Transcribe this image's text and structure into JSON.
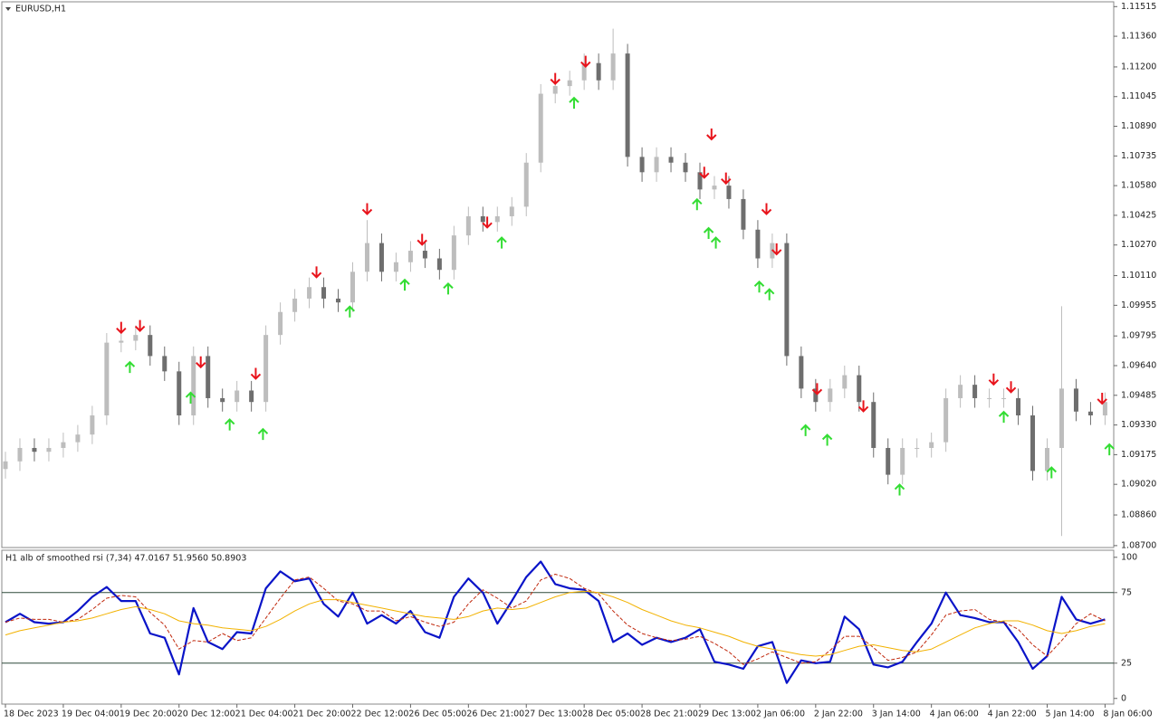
{
  "chart_data": [
    {
      "type": "candlestick",
      "title": "EURUSD,H1",
      "x_labels": [
        "18 Dec 2023",
        "19 Dec 04:00",
        "19 Dec 20:00",
        "20 Dec 12:00",
        "21 Dec 04:00",
        "21 Dec 20:00",
        "22 Dec 12:00",
        "26 Dec 05:00",
        "26 Dec 21:00",
        "27 Dec 13:00",
        "28 Dec 05:00",
        "28 Dec 21:00",
        "29 Dec 13:00",
        "2 Jan 06:00",
        "2 Jan 22:00",
        "3 Jan 14:00",
        "4 Jan 06:00",
        "4 Jan 22:00",
        "5 Jan 14:00",
        "8 Jan 06:00"
      ],
      "xlim": [
        -0.25,
        76.6
      ],
      "ylim": [
        1.0869,
        1.1154
      ],
      "yticks": [
        1.11515,
        {
          "value": 1.1136,
          "label": "1.11360"
        },
        {
          "value": 1.112,
          "label": "1.11200"
        },
        1.11045,
        {
          "value": 1.1089,
          "label": "1.10890"
        },
        1.10735,
        {
          "value": 1.1058,
          "label": "1.10580"
        },
        1.10425,
        {
          "value": 1.1027,
          "label": "1.10270"
        },
        {
          "value": 1.1011,
          "label": "1.10110"
        },
        1.09955,
        1.09795,
        {
          "value": 1.0964,
          "label": "1.09640"
        },
        1.09485,
        {
          "value": 1.0933,
          "label": "1.09330"
        },
        1.09175,
        {
          "value": 1.0902,
          "label": "1.09020"
        },
        {
          "value": 1.0886,
          "label": "1.08860"
        },
        {
          "value": 1.087,
          "label": "1.08700"
        }
      ],
      "up_color": "#bdbdbd",
      "down_color": "#6e6e6e",
      "candles": {
        "open": [
          1.091,
          1.0914,
          1.0921,
          1.0919,
          1.0921,
          1.0924,
          1.0928,
          1.0938,
          1.0976,
          1.0977,
          1.098,
          1.0969,
          1.0961,
          1.0938,
          1.0969,
          1.0947,
          1.0945,
          1.0951,
          1.0945,
          1.098,
          1.0992,
          1.0999,
          1.1005,
          1.0999,
          1.0997,
          1.1013,
          1.1028,
          1.1013,
          1.1018,
          1.1024,
          1.102,
          1.1014,
          1.1032,
          1.1042,
          1.1039,
          1.1042,
          1.1047,
          1.107,
          1.1106,
          1.111,
          1.1113,
          1.1122,
          1.1113,
          1.1127,
          1.1073,
          1.1065,
          1.1073,
          1.107,
          1.1065,
          1.1056,
          1.1058,
          1.1051,
          1.1035,
          1.102,
          1.1028,
          1.0969,
          1.0952,
          1.0945,
          1.0952,
          1.0959,
          1.0945,
          1.0921,
          1.0907,
          1.0921,
          1.0921,
          1.0924,
          1.0947,
          1.0954,
          1.0947,
          1.0947,
          1.0947,
          1.0938,
          1.0909,
          1.0921,
          1.0952,
          1.094,
          1.0938
        ],
        "high": [
          1.0919,
          1.0926,
          1.0926,
          1.0926,
          1.0929,
          1.0933,
          1.0943,
          1.0981,
          1.0982,
          1.0985,
          1.0985,
          1.0974,
          1.0966,
          1.0974,
          1.0974,
          1.0952,
          1.0956,
          1.0956,
          1.0985,
          1.0997,
          1.1004,
          1.101,
          1.101,
          1.1004,
          1.1018,
          1.104,
          1.1033,
          1.1023,
          1.1029,
          1.1029,
          1.1025,
          1.1037,
          1.1047,
          1.1047,
          1.1047,
          1.1052,
          1.1075,
          1.1111,
          1.1115,
          1.1118,
          1.1127,
          1.1127,
          1.114,
          1.1132,
          1.1078,
          1.1078,
          1.1078,
          1.1075,
          1.107,
          1.1063,
          1.1063,
          1.1056,
          1.104,
          1.1033,
          1.1033,
          1.0974,
          1.0957,
          1.0957,
          1.0964,
          1.0964,
          1.095,
          1.0926,
          1.0926,
          1.0926,
          1.0929,
          1.0952,
          1.0959,
          1.0959,
          1.0952,
          1.0952,
          1.0952,
          1.0943,
          1.0926,
          1.0995,
          1.0957,
          1.0945,
          1.095
        ],
        "low": [
          1.0905,
          1.0909,
          1.0914,
          1.0914,
          1.0916,
          1.0919,
          1.0923,
          1.0933,
          1.0971,
          1.0972,
          1.0964,
          1.0956,
          1.0933,
          1.0933,
          1.0942,
          1.094,
          1.094,
          1.094,
          1.094,
          1.0975,
          1.0987,
          1.0994,
          1.0994,
          1.0992,
          1.0992,
          1.1008,
          1.1008,
          1.1008,
          1.1013,
          1.1015,
          1.1009,
          1.1009,
          1.1027,
          1.1034,
          1.1034,
          1.1037,
          1.1042,
          1.1065,
          1.1101,
          1.1105,
          1.1108,
          1.1108,
          1.1108,
          1.1068,
          1.106,
          1.106,
          1.1065,
          1.106,
          1.1051,
          1.1051,
          1.1046,
          1.103,
          1.1015,
          1.1015,
          1.0964,
          1.0947,
          1.094,
          1.094,
          1.0947,
          1.094,
          1.0916,
          1.0902,
          1.0902,
          1.0916,
          1.0916,
          1.0919,
          1.0942,
          1.0942,
          1.0942,
          1.0942,
          1.0933,
          1.0904,
          1.0904,
          1.0875,
          1.0935,
          1.0933,
          1.0933
        ],
        "close": [
          1.0914,
          1.0921,
          1.0919,
          1.0921,
          1.0924,
          1.0928,
          1.0938,
          1.0976,
          1.0977,
          1.098,
          1.0969,
          1.0961,
          1.0938,
          1.0969,
          1.0947,
          1.0945,
          1.0951,
          1.0945,
          1.098,
          1.0992,
          1.0999,
          1.1005,
          1.0999,
          1.0997,
          1.1013,
          1.1028,
          1.1013,
          1.1018,
          1.1024,
          1.102,
          1.1014,
          1.1032,
          1.1042,
          1.1039,
          1.1042,
          1.1047,
          1.107,
          1.1106,
          1.111,
          1.1113,
          1.1122,
          1.1113,
          1.1127,
          1.1073,
          1.1065,
          1.1073,
          1.107,
          1.1065,
          1.1056,
          1.1058,
          1.1051,
          1.1035,
          1.102,
          1.1028,
          1.0969,
          1.0952,
          1.0945,
          1.0952,
          1.0959,
          1.0945,
          1.0921,
          1.0907,
          1.0921,
          1.0921,
          1.0924,
          1.0947,
          1.0954,
          1.0947,
          1.0947,
          1.0947,
          1.0938,
          1.0909,
          1.0921,
          1.0952,
          1.094,
          1.0938,
          1.0945
        ]
      },
      "signals": [
        {
          "marker": "down",
          "color": "#e8141c",
          "x": [
            8.0,
            9.3,
            13.5,
            17.3,
            21.5,
            25.0,
            28.8,
            33.3,
            38.0,
            40.1,
            48.8,
            48.3,
            49.8,
            52.6,
            53.3,
            56.1,
            59.3,
            68.3,
            69.5,
            75.8
          ],
          "values": [
            1.0984,
            1.0985,
            1.0966,
            1.096,
            1.1013,
            1.1046,
            1.103,
            1.1039,
            1.1114,
            1.1123,
            1.1085,
            1.1065,
            1.1062,
            1.1046,
            1.1025,
            1.0952,
            1.0943,
            1.0957,
            1.0953,
            1.0947
          ]
        },
        {
          "marker": "up",
          "color": "#33dd33",
          "x": [
            8.6,
            12.8,
            15.5,
            17.8,
            23.8,
            27.6,
            30.6,
            34.3,
            39.3,
            47.8,
            48.6,
            49.1,
            52.1,
            52.8,
            55.3,
            56.8,
            61.8,
            69.0,
            72.3,
            76.3
          ],
          "values": [
            1.0963,
            1.0947,
            1.0933,
            1.0928,
            1.0992,
            1.1006,
            1.1004,
            1.1028,
            1.1101,
            1.1048,
            1.1033,
            1.1028,
            1.1005,
            1.1001,
            1.093,
            1.0925,
            1.0899,
            1.0937,
            1.0908,
            1.092
          ]
        }
      ]
    },
    {
      "type": "line",
      "title": "H1  alb of smoothed rsi  (7,34) 47.0167 51.9560 50.8903",
      "xlim": [
        -0.25,
        76.6
      ],
      "ylim": [
        -4,
        105
      ],
      "yticks": [
        100,
        75,
        25,
        0
      ],
      "levels": [
        75,
        25
      ],
      "series": [
        {
          "color": "#0a14c8",
          "width": 2.2,
          "dashed": false,
          "values": [
            54,
            60,
            54,
            53,
            54,
            62,
            72,
            79,
            69,
            69,
            46,
            43,
            17,
            64,
            40,
            35,
            47,
            46,
            78,
            90,
            83,
            85,
            67,
            58,
            75,
            53,
            59,
            53,
            62,
            47,
            43,
            72,
            85,
            75,
            53,
            69,
            86,
            97,
            81,
            78,
            77,
            69,
            40,
            46,
            38,
            43,
            40,
            43,
            49,
            26,
            24,
            21,
            37,
            40,
            11,
            27,
            25,
            26,
            58,
            49,
            24,
            22,
            26,
            40,
            53,
            75,
            59,
            57,
            54,
            54,
            40,
            21,
            30,
            72,
            56,
            53,
            56
          ]
        },
        {
          "color": "#c0280c",
          "width": 1,
          "dashed": true,
          "values": [
            54,
            57,
            56,
            56,
            54,
            56,
            63,
            71,
            73,
            72,
            61,
            52,
            35,
            41,
            40,
            46,
            41,
            43,
            57,
            71,
            84,
            86,
            78,
            69,
            67,
            62,
            62,
            55,
            58,
            54,
            51,
            54,
            67,
            77,
            71,
            64,
            69,
            84,
            88,
            85,
            78,
            74,
            62,
            52,
            46,
            43,
            41,
            42,
            44,
            39,
            33,
            24,
            28,
            33,
            29,
            25,
            26,
            34,
            44,
            44,
            36,
            27,
            29,
            33,
            45,
            59,
            62,
            63,
            56,
            54,
            49,
            38,
            30,
            41,
            53,
            60,
            55
          ]
        },
        {
          "color": "#f2b200",
          "width": 1,
          "dashed": false,
          "values": [
            45,
            48,
            50,
            52,
            54,
            55,
            57,
            60,
            63,
            65,
            63,
            60,
            55,
            53,
            52,
            50,
            49,
            48,
            51,
            56,
            62,
            67,
            70,
            70,
            68,
            66,
            64,
            62,
            60,
            58,
            57,
            56,
            58,
            62,
            64,
            63,
            64,
            68,
            72,
            75,
            76,
            75,
            72,
            68,
            63,
            59,
            55,
            52,
            50,
            47,
            44,
            40,
            37,
            35,
            33,
            31,
            30,
            31,
            34,
            37,
            38,
            36,
            34,
            33,
            35,
            40,
            45,
            50,
            53,
            55,
            55,
            52,
            48,
            46,
            48,
            51,
            53
          ]
        }
      ]
    }
  ]
}
